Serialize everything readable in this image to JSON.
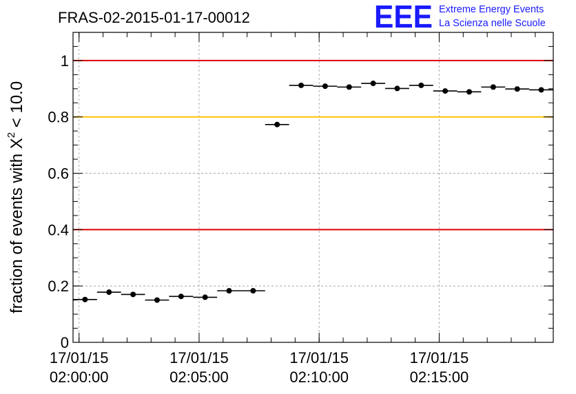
{
  "title": "FRAS-02-2015-01-17-00012",
  "logo": {
    "letters": "EEE",
    "line1": "Extreme Energy Events",
    "line2": "La Scienza nelle Scuole",
    "color": "#1a1aff"
  },
  "chart_data": {
    "type": "scatter",
    "title": "FRAS-02-2015-01-17-00012",
    "ylabel": {
      "prefix": "fraction of events with ",
      "chi": "X",
      "sup": "2",
      "suffix": " < 10.0"
    },
    "xlabel": "",
    "xlim": [
      "17/01/15 01:59:45",
      "17/01/15 02:19:45"
    ],
    "ylim": [
      0,
      1.1
    ],
    "grid": true,
    "x_ticks": [
      {
        "x": "02:00:00",
        "date": "17/01/15",
        "time": "02:00:00"
      },
      {
        "x": "02:05:00",
        "date": "17/01/15",
        "time": "02:05:00"
      },
      {
        "x": "02:10:00",
        "date": "17/01/15",
        "time": "02:10:00"
      },
      {
        "x": "02:15:00",
        "date": "17/01/15",
        "time": "02:15:00"
      }
    ],
    "y_ticks": [
      0,
      0.2,
      0.4,
      0.6,
      0.8,
      1
    ],
    "y_tick_labels": [
      "0",
      "0.2",
      "0.4",
      "0.6",
      "0.8",
      "1"
    ],
    "reference_lines": [
      {
        "y": 1.0,
        "color": "#e00000"
      },
      {
        "y": 0.8,
        "color": "#ffc000"
      },
      {
        "y": 0.4,
        "color": "#e00000"
      }
    ],
    "series": [
      {
        "marker_color": "#000000",
        "bin_width_seconds": 60,
        "points": [
          {
            "x": "02:00:15",
            "y": 0.152
          },
          {
            "x": "02:01:15",
            "y": 0.178
          },
          {
            "x": "02:02:15",
            "y": 0.17
          },
          {
            "x": "02:03:15",
            "y": 0.15
          },
          {
            "x": "02:04:15",
            "y": 0.163
          },
          {
            "x": "02:05:15",
            "y": 0.16
          },
          {
            "x": "02:06:15",
            "y": 0.183
          },
          {
            "x": "02:07:15",
            "y": 0.183
          },
          {
            "x": "02:08:15",
            "y": 0.773
          },
          {
            "x": "02:09:15",
            "y": 0.912
          },
          {
            "x": "02:10:15",
            "y": 0.909
          },
          {
            "x": "02:11:15",
            "y": 0.906
          },
          {
            "x": "02:12:15",
            "y": 0.919
          },
          {
            "x": "02:13:15",
            "y": 0.901
          },
          {
            "x": "02:14:15",
            "y": 0.912
          },
          {
            "x": "02:15:15",
            "y": 0.892
          },
          {
            "x": "02:16:15",
            "y": 0.889
          },
          {
            "x": "02:17:15",
            "y": 0.906
          },
          {
            "x": "02:18:15",
            "y": 0.899
          },
          {
            "x": "02:19:15",
            "y": 0.896
          }
        ]
      }
    ]
  }
}
